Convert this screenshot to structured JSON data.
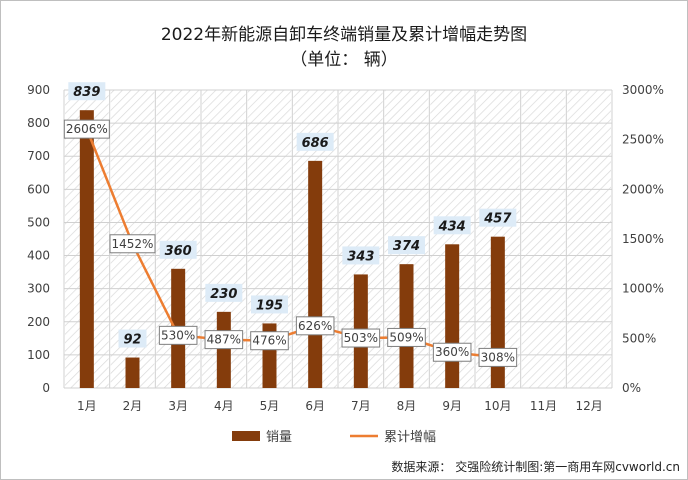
{
  "title": "2022年新能源自卸车终端销量及累计增幅走势图",
  "subtitle": "（单位：  辆）",
  "source": "数据来源：  交强险统计制图:第一商用车网cvworld.cn",
  "chart_data": {
    "type": "bar",
    "categories": [
      "1月",
      "2月",
      "3月",
      "4月",
      "5月",
      "6月",
      "7月",
      "8月",
      "9月",
      "10月",
      "11月",
      "12月"
    ],
    "series": [
      {
        "name": "销量",
        "values": [
          839,
          92,
          360,
          230,
          195,
          686,
          343,
          374,
          434,
          457,
          null,
          null
        ],
        "labels": [
          "839",
          "92",
          "360",
          "230",
          "195",
          "686",
          "343",
          "374",
          "434",
          "457",
          "",
          ""
        ]
      },
      {
        "name": "累计增幅",
        "values": [
          2606,
          1452,
          530,
          487,
          476,
          626,
          503,
          509,
          360,
          308,
          null,
          null
        ],
        "labels": [
          "2606%",
          "1452%",
          "530%",
          "487%",
          "476%",
          "626%",
          "503%",
          "509%",
          "360%",
          "308%",
          "",
          ""
        ]
      }
    ],
    "y_left": {
      "min": 0,
      "max": 900,
      "step": 100,
      "ticks": [
        "0",
        "100",
        "200",
        "300",
        "400",
        "500",
        "600",
        "700",
        "800",
        "900"
      ]
    },
    "y_right": {
      "min": 0,
      "max": 3000,
      "step": 500,
      "ticks": [
        "0%",
        "500%",
        "1000%",
        "1500%",
        "2000%",
        "2500%",
        "3000%"
      ]
    },
    "legend": {
      "position": "bottom",
      "bar_label": "销量",
      "line_label": "累计增幅"
    },
    "colors": {
      "bar": "#843c0c",
      "line": "#ed7d31",
      "bar_label_bg": "#ddebf7"
    },
    "grid": true
  }
}
